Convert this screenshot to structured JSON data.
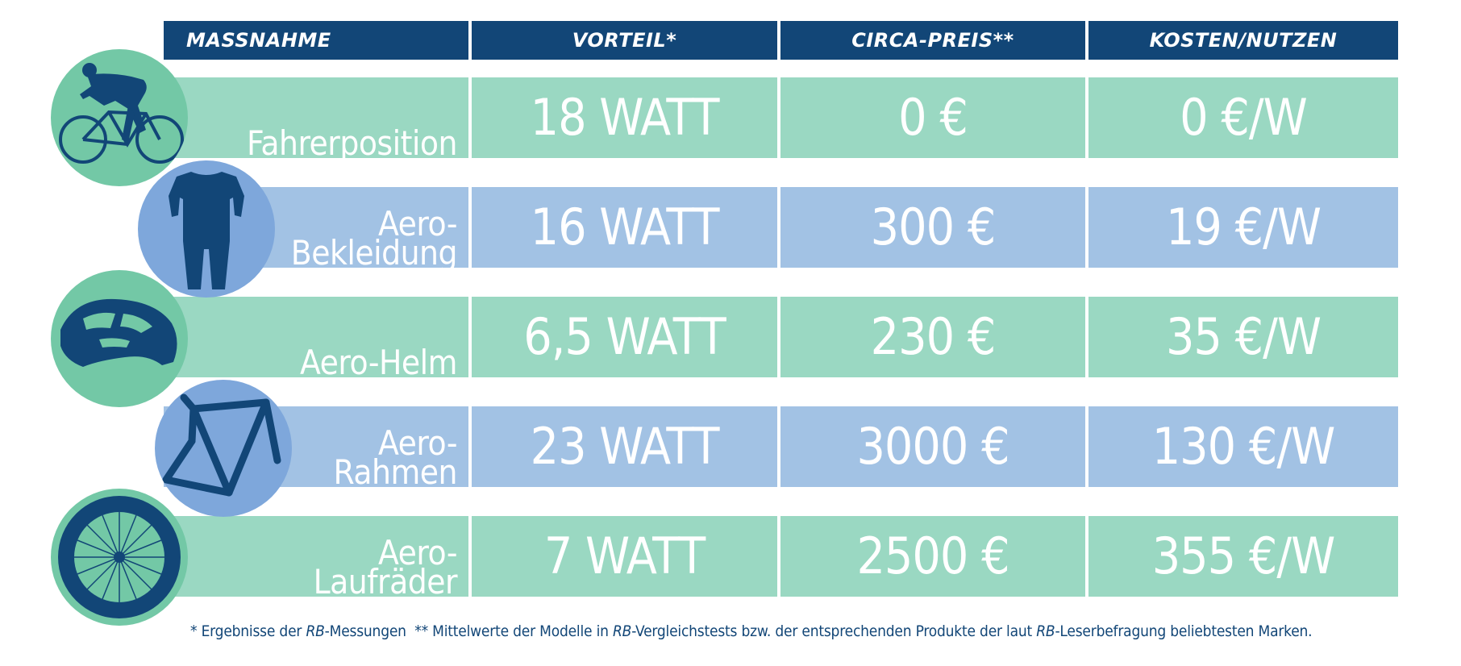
{
  "columns": {
    "measure": "MASSNAHME",
    "benefit": "VORTEIL*",
    "price": "CIRCA-PREIS**",
    "cost_benefit": "KOSTEN/NUTZEN"
  },
  "rows": [
    {
      "label_lines": [
        "Fahrerposition"
      ],
      "benefit": "18 WATT",
      "price": "0 €",
      "cost_benefit": "0 €/W",
      "row_color": "#9ad8c2",
      "icon": "cyclist-icon"
    },
    {
      "label_lines": [
        "Aero-",
        "Bekleidung"
      ],
      "benefit": "16 WATT",
      "price": "300 €",
      "cost_benefit": "19 €/W",
      "row_color": "#a2c2e4",
      "icon": "skinsuit-icon"
    },
    {
      "label_lines": [
        "Aero-Helm"
      ],
      "benefit": "6,5 WATT",
      "price": "230 €",
      "cost_benefit": "35 €/W",
      "row_color": "#9ad8c2",
      "icon": "helmet-icon"
    },
    {
      "label_lines": [
        "Aero-",
        "Rahmen"
      ],
      "benefit": "23 WATT",
      "price": "3000 €",
      "cost_benefit": "130 €/W",
      "row_color": "#a2c2e4",
      "icon": "frame-icon"
    },
    {
      "label_lines": [
        "Aero-",
        "Laufräder"
      ],
      "benefit": "7 WATT",
      "price": "2500 €",
      "cost_benefit": "355 €/W",
      "row_color": "#9ad8c2",
      "icon": "wheel-icon"
    }
  ],
  "footnote": {
    "p1": "* Ergebnisse der ",
    "rb1": "RB",
    "p2": "-Messungen  ** Mittelwerte der Modelle in ",
    "rb2": "RB",
    "p3": "-Vergleichstests bzw. der entsprechenden Produkte der laut ",
    "rb3": "RB",
    "p4": "-Leserbefragung beliebtesten Marken."
  },
  "colors": {
    "header_bg": "#124677",
    "green_row": "#9ad8c2",
    "blue_row": "#a2c2e4",
    "green_circle": "#73c8a6",
    "blue_circle": "#7ea7db",
    "icon_dark": "#124677"
  }
}
